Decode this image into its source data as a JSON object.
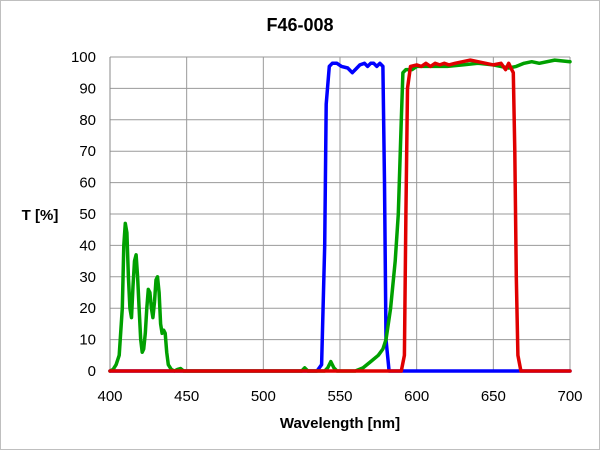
{
  "chart_data": {
    "type": "line",
    "title": "F46-008",
    "xlabel": "Wavelength [nm]",
    "ylabel": "T [%]",
    "xlim": [
      400,
      700
    ],
    "ylim": [
      0,
      100
    ],
    "x_ticks": [
      400,
      450,
      500,
      550,
      600,
      650,
      700
    ],
    "y_ticks": [
      0,
      10,
      20,
      30,
      40,
      50,
      60,
      70,
      80,
      90,
      100
    ],
    "x_tick_labels": [
      "400",
      "450",
      "500",
      "550",
      "600",
      "650",
      "700"
    ],
    "y_tick_labels": [
      "0",
      "10",
      "20",
      "30",
      "40",
      "50",
      "60",
      "70",
      "80",
      "90",
      "100"
    ],
    "grid": true,
    "legend": "none",
    "series": [
      {
        "color": "#0000ff",
        "points": [
          [
            400,
            0
          ],
          [
            535,
            0
          ],
          [
            538,
            2
          ],
          [
            540,
            40
          ],
          [
            541,
            85
          ],
          [
            543,
            97
          ],
          [
            545,
            98
          ],
          [
            548,
            98
          ],
          [
            551,
            97
          ],
          [
            555,
            96.5
          ],
          [
            558,
            95
          ],
          [
            560,
            96
          ],
          [
            563,
            97.5
          ],
          [
            566,
            98
          ],
          [
            568,
            97
          ],
          [
            570,
            98
          ],
          [
            572,
            98
          ],
          [
            574,
            97
          ],
          [
            576,
            98
          ],
          [
            578,
            97
          ],
          [
            579,
            60
          ],
          [
            580,
            10
          ],
          [
            582,
            0
          ],
          [
            700,
            0
          ]
        ]
      },
      {
        "color": "#00a000",
        "points": [
          [
            400,
            0
          ],
          [
            402,
            0.5
          ],
          [
            404,
            2
          ],
          [
            406,
            5
          ],
          [
            408,
            20
          ],
          [
            409,
            40
          ],
          [
            410,
            47
          ],
          [
            411,
            44
          ],
          [
            412,
            30
          ],
          [
            413,
            20
          ],
          [
            414,
            17
          ],
          [
            415,
            27
          ],
          [
            416,
            35
          ],
          [
            417,
            37
          ],
          [
            418,
            30
          ],
          [
            419,
            20
          ],
          [
            420,
            10
          ],
          [
            421,
            6
          ],
          [
            422,
            7
          ],
          [
            423,
            12
          ],
          [
            424,
            20
          ],
          [
            425,
            26
          ],
          [
            426,
            25
          ],
          [
            427,
            20
          ],
          [
            428,
            17
          ],
          [
            429,
            22
          ],
          [
            430,
            29
          ],
          [
            431,
            30
          ],
          [
            432,
            25
          ],
          [
            433,
            15
          ],
          [
            434,
            12
          ],
          [
            435,
            13
          ],
          [
            436,
            12
          ],
          [
            437,
            6
          ],
          [
            438,
            2
          ],
          [
            440,
            0.5
          ],
          [
            442,
            0
          ],
          [
            444,
            0.5
          ],
          [
            446,
            0.8
          ],
          [
            448,
            0
          ],
          [
            525,
            0
          ],
          [
            527,
            1
          ],
          [
            529,
            0
          ],
          [
            540,
            0
          ],
          [
            542,
            1
          ],
          [
            544,
            3
          ],
          [
            546,
            1
          ],
          [
            548,
            0
          ],
          [
            560,
            0
          ],
          [
            565,
            1
          ],
          [
            570,
            3
          ],
          [
            575,
            5
          ],
          [
            578,
            7
          ],
          [
            580,
            10
          ],
          [
            583,
            20
          ],
          [
            586,
            35
          ],
          [
            588,
            50
          ],
          [
            590,
            80
          ],
          [
            591,
            95
          ],
          [
            593,
            96
          ],
          [
            597,
            96
          ],
          [
            600,
            97
          ],
          [
            610,
            97
          ],
          [
            620,
            97
          ],
          [
            630,
            97.5
          ],
          [
            640,
            98
          ],
          [
            650,
            97.5
          ],
          [
            660,
            96.5
          ],
          [
            665,
            97
          ],
          [
            670,
            98
          ],
          [
            675,
            98.5
          ],
          [
            680,
            98
          ],
          [
            690,
            99
          ],
          [
            700,
            98.5
          ]
        ]
      },
      {
        "color": "#e00000",
        "points": [
          [
            400,
            0
          ],
          [
            590,
            0
          ],
          [
            592,
            5
          ],
          [
            593,
            50
          ],
          [
            594,
            90
          ],
          [
            596,
            97
          ],
          [
            600,
            97.5
          ],
          [
            603,
            97
          ],
          [
            606,
            98
          ],
          [
            609,
            97
          ],
          [
            612,
            98
          ],
          [
            615,
            97.5
          ],
          [
            618,
            98
          ],
          [
            621,
            97.5
          ],
          [
            625,
            98
          ],
          [
            630,
            98.5
          ],
          [
            635,
            99
          ],
          [
            640,
            98.5
          ],
          [
            645,
            98
          ],
          [
            650,
            97.5
          ],
          [
            655,
            98
          ],
          [
            658,
            96
          ],
          [
            660,
            98
          ],
          [
            662,
            96
          ],
          [
            663,
            95
          ],
          [
            664,
            70
          ],
          [
            665,
            30
          ],
          [
            666,
            5
          ],
          [
            668,
            0
          ],
          [
            700,
            0
          ]
        ]
      }
    ]
  }
}
